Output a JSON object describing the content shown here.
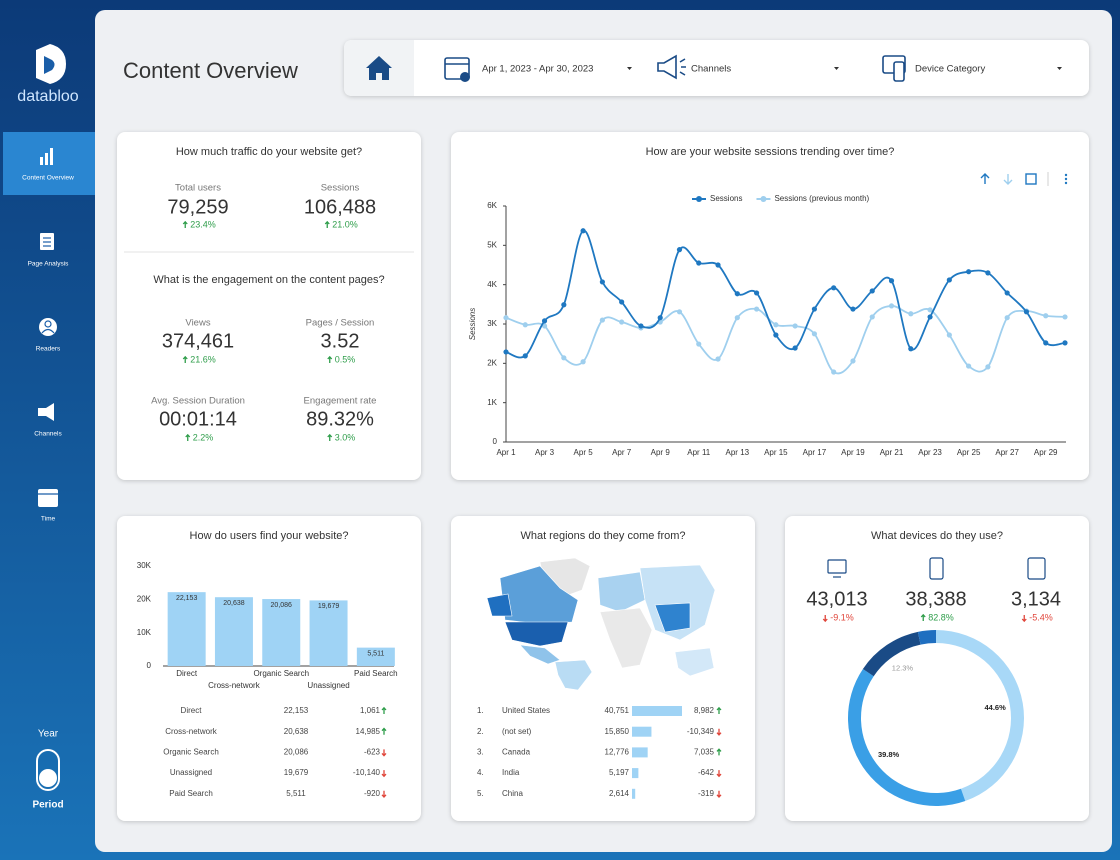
{
  "sidebar": {
    "brand": "databloo",
    "nav": [
      "Content Overview",
      "Page Analysis",
      "Readers",
      "Channels",
      "Time"
    ],
    "toggle_label": "Year",
    "toggle_caption": "Period"
  },
  "header": {
    "title": "Content Overview",
    "filters": [
      "Apr 1, 2023 - Apr 30, 2023",
      "Channels",
      "Device Category"
    ]
  },
  "traffic": {
    "title": "How much traffic do your website get?",
    "kpis": [
      {
        "label": "Total users",
        "value": "79,259",
        "change": "23.4%"
      },
      {
        "label": "Sessions",
        "value": "106,488",
        "change": "21.0%"
      }
    ]
  },
  "engagement": {
    "title": "What is the engagement on the content pages?",
    "kpis": [
      {
        "label": "Views",
        "value": "374,461",
        "change": "21.6%"
      },
      {
        "label": "Pages / Session",
        "value": "3.52",
        "change": "0.5%"
      },
      {
        "label": "Avg. Session Duration",
        "value": "00:01:14",
        "change": "2.2%"
      },
      {
        "label": "Engagement rate",
        "value": "89.32%",
        "change": "3.0%"
      }
    ]
  },
  "chart_data": [
    {
      "type": "line",
      "title": "How are your website sessions trending over time?",
      "y_label": "Sessions",
      "categories": [
        "Apr 1",
        null,
        "Apr 3",
        null,
        "Apr 5",
        null,
        "Apr 7",
        null,
        "Apr 9",
        null,
        "Apr 11",
        null,
        "Apr 13",
        null,
        "Apr 15",
        null,
        "Apr 17",
        null,
        "Apr 19",
        null,
        "Apr 21",
        null,
        "Apr 23",
        null,
        "Apr 25",
        null,
        "Apr 27",
        null,
        "Apr 29",
        null
      ],
      "series": [
        {
          "name": "Sessions",
          "color": "#1f78c1",
          "values": [
            2290,
            2190,
            3080,
            3490,
            5370,
            4070,
            3560,
            2950,
            3160,
            4890,
            4550,
            4500,
            3770,
            3790,
            2720,
            2390,
            3380,
            3920,
            3380,
            3840,
            4100,
            2370,
            3180,
            4120,
            4330,
            4300,
            3790,
            3310,
            2520,
            2520
          ]
        },
        {
          "name": "Sessions (previous month)",
          "color": "#9fcfee",
          "values": [
            3160,
            2980,
            2950,
            2140,
            2040,
            3100,
            3050,
            2900,
            3050,
            3310,
            2490,
            2110,
            3160,
            3380,
            2980,
            2950,
            2750,
            1780,
            2060,
            3180,
            3460,
            3260,
            3360,
            2720,
            1930,
            1910,
            3160,
            3330,
            3210,
            3180
          ]
        }
      ],
      "ylim": [
        0,
        6000
      ],
      "yticks": [
        0,
        {
          "value": 1000,
          "label": "1K"
        },
        {
          "value": 2000,
          "label": "2K"
        },
        {
          "value": 3000,
          "label": "3K"
        },
        {
          "value": 4000,
          "label": "4K"
        },
        {
          "value": 5000,
          "label": "5K"
        },
        {
          "value": 6000,
          "label": "6K"
        }
      ]
    },
    {
      "type": "bar",
      "title": "How do users find your website?",
      "categories": [
        "Direct",
        "Cross-network",
        "Organic Search",
        "Unassigned",
        "Paid Search"
      ],
      "values": [
        22153,
        20638,
        20086,
        19679,
        5511
      ],
      "value_labels": [
        "22,153",
        "20,638",
        "20,086",
        "19,679",
        "5,511"
      ],
      "color": "#9fd3f5",
      "ylim": [
        0,
        30000
      ],
      "yticks": [
        0,
        {
          "value": 10000,
          "label": "10K"
        },
        {
          "value": 20000,
          "label": "20K"
        },
        {
          "value": 30000,
          "label": "30K"
        }
      ],
      "changes": [
        "1,061",
        "14,985",
        "-623",
        "-10,140",
        "-920"
      ]
    },
    {
      "type": "table-bar",
      "title": "What regions do they come from?",
      "ranks": [
        "1.",
        "2.",
        "3.",
        "4.",
        "5."
      ],
      "categories": [
        "United States",
        "(not set)",
        "Canada",
        "India",
        "China"
      ],
      "values": [
        40751,
        15850,
        12776,
        5197,
        2614
      ],
      "value_labels": [
        "40,751",
        "15,850",
        "12,776",
        "5,197",
        "2,614"
      ],
      "changes": [
        "8,982",
        "-10,349",
        "7,035",
        "-642",
        "-319"
      ],
      "color": "#9fd3f5"
    },
    {
      "type": "pie",
      "title": "What devices do they use?",
      "kpis": [
        {
          "value": "43,013",
          "change": "-9.1%"
        },
        {
          "value": "38,388",
          "change": "82.8%"
        },
        {
          "value": "3,134",
          "change": "-5.4%"
        }
      ],
      "values": [
        44.6,
        39.8,
        12.3,
        3.3
      ],
      "value_labels": [
        "44.6%",
        "39.8%",
        "12.3%",
        null
      ],
      "colors": [
        "#a8d8f7",
        "#3a9fe6",
        "#1a4b86",
        "#1f6fc0"
      ]
    }
  ]
}
